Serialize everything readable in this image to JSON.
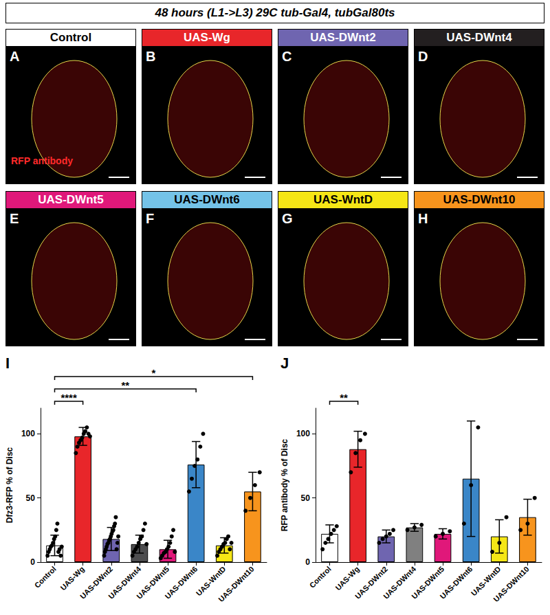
{
  "header": "48 hours (L1->L3) 29C tub-Gal4, tubGal80ts",
  "panels": [
    {
      "letter": "A",
      "title": "Control",
      "color": "#ffffff",
      "stain_label": "RFP antibody"
    },
    {
      "letter": "B",
      "title": "UAS-Wg",
      "color": "#e8262a"
    },
    {
      "letter": "C",
      "title": "UAS-DWnt2",
      "color": "#6f65b0"
    },
    {
      "letter": "D",
      "title": "UAS-DWnt4",
      "color": "#231f20"
    },
    {
      "letter": "E",
      "title": "UAS-DWnt5",
      "color": "#e0187a"
    },
    {
      "letter": "F",
      "title": "UAS-DWnt6",
      "color": "#74c3e8"
    },
    {
      "letter": "G",
      "title": "UAS-WntD",
      "color": "#f5e616"
    },
    {
      "letter": "H",
      "title": "UAS-DWnt10",
      "color": "#f7941d"
    }
  ],
  "chart_data": [
    {
      "type": "bar",
      "panel": "I",
      "y_label": "Dfz3-RFP % of Disc",
      "categories": [
        "Control",
        "UAS-Wg",
        "UAS-DWnt2",
        "UAS-DWnt4",
        "UAS-DWnt5",
        "UAS-DWnt6",
        "UAS-WntD",
        "UAS-DWnt10"
      ],
      "values": [
        13,
        98,
        18,
        14,
        10,
        76,
        13,
        55
      ],
      "error": [
        8,
        7,
        9,
        7,
        7,
        18,
        6,
        15
      ],
      "points": [
        [
          5,
          8,
          10,
          12,
          13,
          15,
          18,
          20,
          25,
          30,
          8,
          10,
          5,
          12
        ],
        [
          85,
          90,
          93,
          95,
          97,
          100,
          102,
          105,
          100,
          98
        ],
        [
          5,
          8,
          10,
          12,
          14,
          15,
          17,
          18,
          20,
          22,
          24,
          25,
          28,
          30,
          35,
          10,
          15,
          20
        ],
        [
          5,
          8,
          10,
          12,
          15,
          18,
          20,
          25,
          30,
          14
        ],
        [
          3,
          5,
          7,
          8,
          10,
          12,
          15,
          20,
          25,
          8
        ],
        [
          55,
          65,
          75,
          80,
          90,
          100
        ],
        [
          5,
          8,
          10,
          12,
          14,
          15,
          18,
          20,
          10,
          15
        ],
        [
          40,
          50,
          60,
          70
        ]
      ],
      "colors": [
        "#ffffff",
        "#e8262a",
        "#6f65b0",
        "#4d4d4f",
        "#e0187a",
        "#3a86c8",
        "#f5e616",
        "#f7941d"
      ],
      "ylim": [
        0,
        120
      ],
      "yticks": [
        0,
        50,
        100
      ],
      "grid": false,
      "significance": [
        {
          "from": "Control",
          "to": "UAS-Wg",
          "label": "****"
        },
        {
          "from": "Control",
          "to": "UAS-DWnt6",
          "label": "**"
        },
        {
          "from": "Control",
          "to": "UAS-DWnt10",
          "label": "*"
        }
      ]
    },
    {
      "type": "bar",
      "panel": "J",
      "y_label": "RFP antibody % of Disc",
      "categories": [
        "Control",
        "UAS-Wg",
        "UAS-DWnt2",
        "UAS-DWnt4",
        "UAS-DWnt5",
        "UAS-DWnt6",
        "UAS-WntD",
        "UAS-DWnt10"
      ],
      "values": [
        22,
        88,
        20,
        27,
        22,
        65,
        20,
        35
      ],
      "error": [
        7,
        14,
        5,
        3,
        4,
        45,
        13,
        14
      ],
      "points": [
        [
          10,
          15,
          18,
          22,
          25,
          28
        ],
        [
          70,
          85,
          95,
          100
        ],
        [
          15,
          18,
          20,
          22,
          25
        ],
        [
          25,
          27,
          29
        ],
        [
          20,
          22,
          24
        ],
        [
          30,
          60,
          105
        ],
        [
          8,
          15,
          35
        ],
        [
          25,
          30,
          50
        ]
      ],
      "colors": [
        "#ffffff",
        "#e8262a",
        "#6f65b0",
        "#808080",
        "#e0187a",
        "#3a86c8",
        "#f5e616",
        "#f7941d"
      ],
      "ylim": [
        0,
        120
      ],
      "yticks": [
        0,
        50,
        100
      ],
      "grid": false,
      "significance": [
        {
          "from": "Control",
          "to": "UAS-Wg",
          "label": "**"
        }
      ]
    }
  ]
}
